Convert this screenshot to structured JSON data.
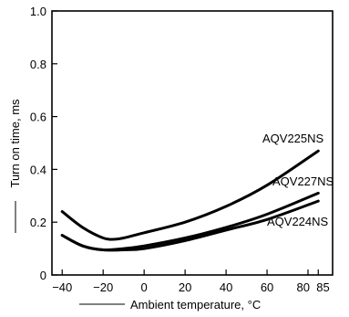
{
  "chart_data": {
    "type": "line",
    "xlabel": "Ambient temperature, °C",
    "ylabel": "Turn on time, ms",
    "xlim": [
      -45,
      92
    ],
    "ylim": [
      0,
      1.0
    ],
    "x_ticks": [
      -40,
      -20,
      0,
      20,
      40,
      60,
      80,
      85
    ],
    "x_tick_labels": [
      "−40",
      "−20",
      "0",
      "20",
      "40",
      "60",
      "80",
      "85"
    ],
    "y_ticks": [
      0,
      0.2,
      0.4,
      0.6,
      0.8,
      1.0
    ],
    "y_tick_labels": [
      "0",
      "0.2",
      "0.4",
      "0.6",
      "0.8",
      "1.0"
    ],
    "grid": false,
    "legend": "inline",
    "series": [
      {
        "name": "AQV225NS",
        "x": [
          -40,
          -30,
          -20,
          -15,
          -10,
          0,
          20,
          40,
          60,
          85
        ],
        "y": [
          0.24,
          0.18,
          0.14,
          0.135,
          0.14,
          0.16,
          0.2,
          0.26,
          0.34,
          0.47
        ]
      },
      {
        "name": "AQV227NS",
        "x": [
          -40,
          -30,
          -20,
          -10,
          0,
          20,
          40,
          60,
          85
        ],
        "y": [
          0.15,
          0.11,
          0.095,
          0.1,
          0.11,
          0.14,
          0.18,
          0.23,
          0.31
        ]
      },
      {
        "name": "AQV224NS",
        "x": [
          -40,
          -30,
          -20,
          -10,
          0,
          20,
          40,
          60,
          85
        ],
        "y": [
          0.15,
          0.11,
          0.095,
          0.095,
          0.1,
          0.13,
          0.17,
          0.21,
          0.28
        ]
      }
    ]
  }
}
